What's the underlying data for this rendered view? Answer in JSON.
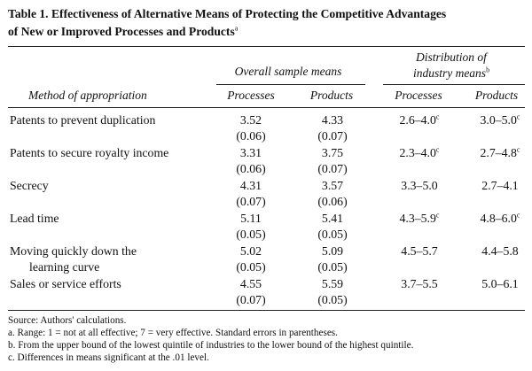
{
  "title": {
    "line1": "Table 1.  Effectiveness of Alternative Means of Protecting the Competitive Advantages",
    "line2": "of New or Improved Processes and Products",
    "line2_sup": "a"
  },
  "headers": {
    "group1": "Overall sample means",
    "group2_line1": "Distribution of",
    "group2_line2": "industry means",
    "group2_sup": "b",
    "method": "Method of appropriation",
    "col1": "Processes",
    "col2": "Products",
    "col3": "Processes",
    "col4": "Products"
  },
  "rows": [
    {
      "method": [
        "Patents to prevent duplication"
      ],
      "proc_mean": "3.52",
      "proc_se": "(0.06)",
      "prod_mean": "4.33",
      "prod_se": "(0.07)",
      "proc_dist": "2.6–4.0",
      "proc_dist_sup": "c",
      "prod_dist": "3.0–5.0",
      "prod_dist_sup": "c"
    },
    {
      "method": [
        "Patents to secure royalty income"
      ],
      "proc_mean": "3.31",
      "proc_se": "(0.06)",
      "prod_mean": "3.75",
      "prod_se": "(0.07)",
      "proc_dist": "2.3–4.0",
      "proc_dist_sup": "c",
      "prod_dist": "2.7–4.8",
      "prod_dist_sup": "c"
    },
    {
      "method": [
        "Secrecy"
      ],
      "proc_mean": "4.31",
      "proc_se": "(0.07)",
      "prod_mean": "3.57",
      "prod_se": "(0.06)",
      "proc_dist": "3.3–5.0",
      "proc_dist_sup": "",
      "prod_dist": "2.7–4.1",
      "prod_dist_sup": ""
    },
    {
      "method": [
        "Lead time"
      ],
      "proc_mean": "5.11",
      "proc_se": "(0.05)",
      "prod_mean": "5.41",
      "prod_se": "(0.05)",
      "proc_dist": "4.3–5.9",
      "proc_dist_sup": "c",
      "prod_dist": "4.8–6.0",
      "prod_dist_sup": "c"
    },
    {
      "method": [
        "Moving quickly down the",
        "learning curve"
      ],
      "proc_mean": "5.02",
      "proc_se": "(0.05)",
      "prod_mean": "5.09",
      "prod_se": "(0.05)",
      "proc_dist": "4.5–5.7",
      "proc_dist_sup": "",
      "prod_dist": "4.4–5.8",
      "prod_dist_sup": ""
    },
    {
      "method": [
        "Sales or service efforts"
      ],
      "proc_mean": "4.55",
      "proc_se": "(0.07)",
      "prod_mean": "5.59",
      "prod_se": "(0.05)",
      "proc_dist": "3.7–5.5",
      "proc_dist_sup": "",
      "prod_dist": "5.0–6.1",
      "prod_dist_sup": ""
    }
  ],
  "notes": [
    "Source:  Authors' calculations.",
    "a.  Range:  1 = not at all effective; 7 = very effective. Standard errors in parentheses.",
    "b.  From the upper bound of the lowest quintile of industries to the lower bound of the highest quintile.",
    "c.  Differences in means significant at the .01 level."
  ]
}
